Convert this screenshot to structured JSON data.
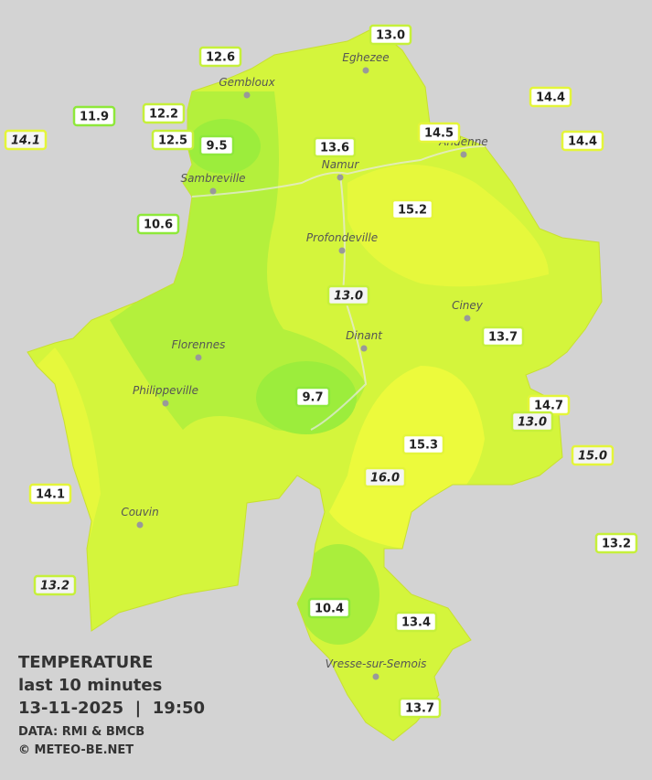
{
  "legend": {
    "title": "TEMPERATURE",
    "period": "last 10 minutes",
    "datetime": "13-11-2025  |  19:50",
    "data_credit": "DATA: RMI & BMCB",
    "copyright": "© METEO-BE.NET"
  },
  "cities": [
    "Eghezee",
    "Gembloux",
    "Andenne",
    "Namur",
    "Sambreville",
    "Profondeville",
    "Ciney",
    "Dinant",
    "Florennes",
    "Philippeville",
    "Couvin",
    "Vresse-sur-Semois"
  ],
  "stations": [
    {
      "label": "13.0",
      "italic": false
    },
    {
      "label": "12.6",
      "italic": false
    },
    {
      "label": "11.9",
      "italic": false
    },
    {
      "label": "12.2",
      "italic": false
    },
    {
      "label": "14.1",
      "italic": true
    },
    {
      "label": "12.5",
      "italic": false
    },
    {
      "label": "9.5",
      "italic": false
    },
    {
      "label": "13.6",
      "italic": false
    },
    {
      "label": "14.5",
      "italic": false
    },
    {
      "label": "14.4",
      "italic": false
    },
    {
      "label": "14.4",
      "italic": false
    },
    {
      "label": "10.6",
      "italic": false
    },
    {
      "label": "15.2",
      "italic": false
    },
    {
      "label": "13.0",
      "italic": true
    },
    {
      "label": "13.7",
      "italic": false
    },
    {
      "label": "9.7",
      "italic": false
    },
    {
      "label": "14.7",
      "italic": false
    },
    {
      "label": "13.0",
      "italic": true
    },
    {
      "label": "15.3",
      "italic": false
    },
    {
      "label": "16.0",
      "italic": true
    },
    {
      "label": "15.0",
      "italic": true
    },
    {
      "label": "14.1",
      "italic": false
    },
    {
      "label": "13.2",
      "italic": false
    },
    {
      "label": "13.2",
      "italic": true
    },
    {
      "label": "10.4",
      "italic": false
    },
    {
      "label": "13.4",
      "italic": false
    },
    {
      "label": "13.7",
      "italic": false
    }
  ]
}
